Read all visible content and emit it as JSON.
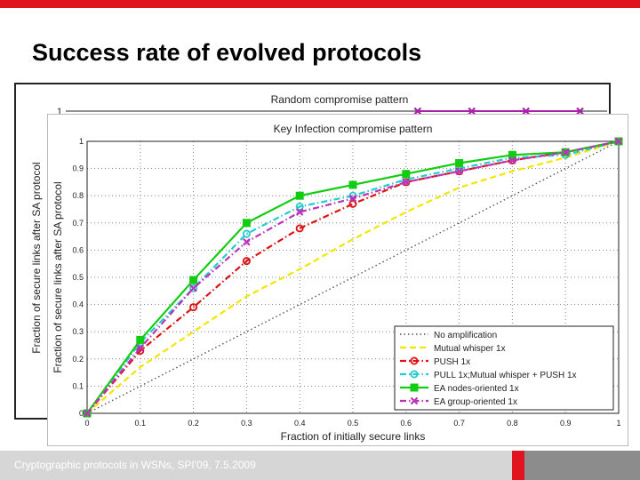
{
  "slide": {
    "title": "Success rate of evolved protocols",
    "footer": "Cryptographic protocols in WSNs, SPI'09, 7.5.2009"
  },
  "colors": {
    "accent_red": "#e0141e",
    "footer_light": "#d6d6d6",
    "footer_dark": "#8c8c8c"
  },
  "chart_data": [
    {
      "type": "line",
      "title": "Random compromise pattern",
      "ylabel": "Fraction of secure links after SA protocol",
      "ylim": [
        0,
        1
      ],
      "partially_occluded": true,
      "x": [
        0.65,
        0.75,
        0.85,
        0.95
      ],
      "series": [
        {
          "values": [
            1,
            1,
            1,
            1
          ],
          "color": "#aa22aa"
        }
      ]
    },
    {
      "type": "line",
      "title": "Key Infection compromise pattern",
      "xlabel": "Fraction of initially secure links",
      "ylabel": "Fraction of secure links after SA protocol",
      "xlim": [
        0,
        1
      ],
      "ylim": [
        0,
        1
      ],
      "grid": true,
      "legend_position": "bottom-right",
      "x": [
        0,
        0.1,
        0.2,
        0.3,
        0.4,
        0.5,
        0.6,
        0.7,
        0.8,
        0.9,
        1
      ],
      "xticks": [
        "0",
        "0.1",
        "0.2",
        "0.3",
        "0.4",
        "0.5",
        "0.6",
        "0.7",
        "0.8",
        "0.9",
        "1"
      ],
      "yticks": [
        "0",
        "0.1",
        "0.2",
        "0.3",
        "0.4",
        "0.5",
        "0.6",
        "0.7",
        "0.8",
        "0.9",
        "1"
      ],
      "series": [
        {
          "name": "No amplification",
          "values": [
            0,
            0.1,
            0.2,
            0.3,
            0.4,
            0.5,
            0.6,
            0.7,
            0.8,
            0.9,
            1
          ],
          "color": "#555555",
          "dash": "dotted",
          "marker": "none"
        },
        {
          "name": "Mutual whisper 1x",
          "values": [
            0,
            0.17,
            0.3,
            0.43,
            0.53,
            0.64,
            0.74,
            0.83,
            0.89,
            0.94,
            1
          ],
          "color": "#f2e600",
          "dash": "dashed",
          "marker": "none"
        },
        {
          "name": "PUSH 1x",
          "values": [
            0,
            0.23,
            0.39,
            0.56,
            0.68,
            0.77,
            0.85,
            0.89,
            0.93,
            0.96,
            1
          ],
          "color": "#dd1111",
          "dash": "dashdot",
          "marker": "circle"
        },
        {
          "name": "PULL 1x;Mutual whisper + PUSH 1x",
          "values": [
            0,
            0.26,
            0.46,
            0.66,
            0.76,
            0.8,
            0.86,
            0.9,
            0.94,
            0.95,
            1
          ],
          "color": "#22cccc",
          "dash": "dashdot",
          "marker": "circle"
        },
        {
          "name": "EA nodes-oriented 1x",
          "values": [
            0,
            0.27,
            0.49,
            0.7,
            0.8,
            0.84,
            0.88,
            0.92,
            0.95,
            0.96,
            1
          ],
          "color": "#11cc11",
          "dash": "solid",
          "marker": "square"
        },
        {
          "name": "EA group-oriented 1x",
          "values": [
            0,
            0.24,
            0.46,
            0.63,
            0.74,
            0.79,
            0.85,
            0.89,
            0.93,
            0.96,
            1
          ],
          "color": "#bb33bb",
          "dash": "dashdot",
          "marker": "x"
        }
      ]
    }
  ]
}
